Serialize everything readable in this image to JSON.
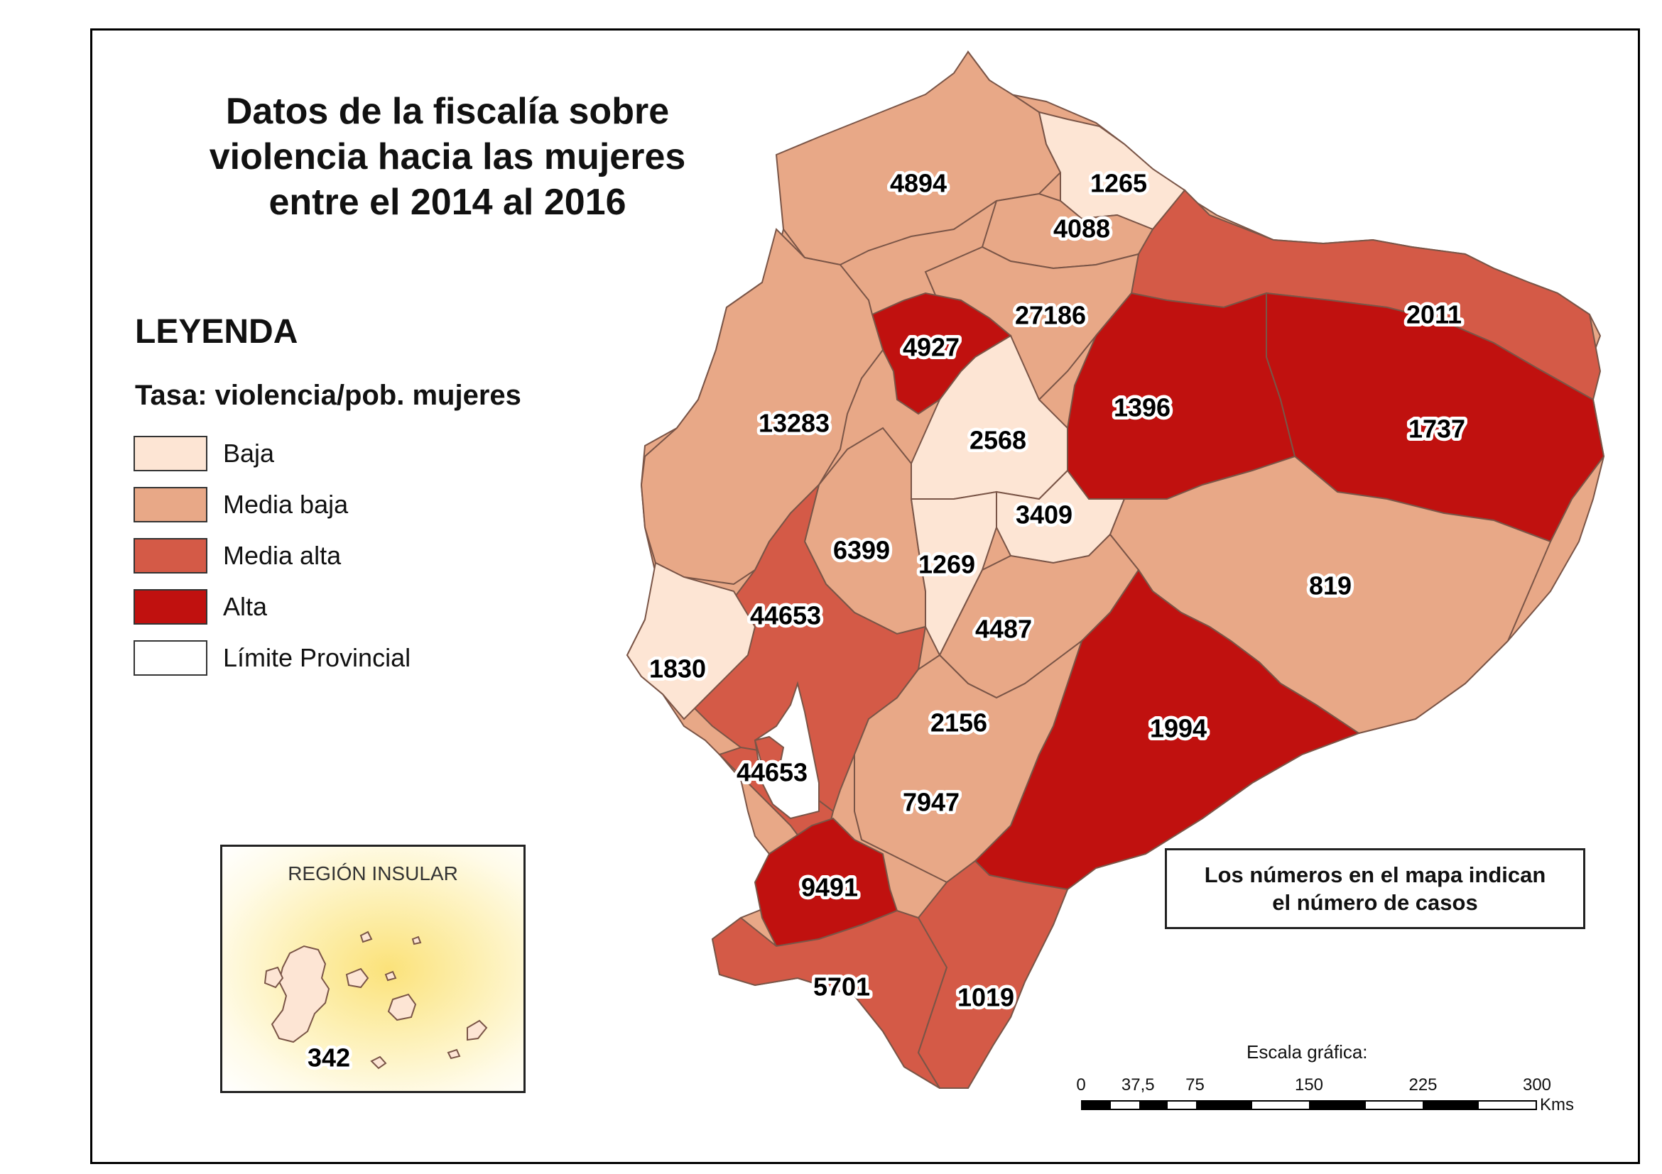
{
  "title_lines": [
    "Datos de la fiscalía sobre",
    "violencia hacia las mujeres",
    "entre el 2014 al 2016"
  ],
  "legend": {
    "heading": "LEYENDA",
    "subtitle": "Tasa: violencia/pob. mujeres",
    "items": [
      {
        "label": "Baja",
        "color": "#fde5d4"
      },
      {
        "label": "Media baja",
        "color": "#e8a887"
      },
      {
        "label": "Media alta",
        "color": "#d45a47"
      },
      {
        "label": "Alta",
        "color": "#c0110f"
      },
      {
        "label": "Límite Provincial",
        "color": "#ffffff"
      }
    ]
  },
  "provinces": [
    {
      "value": "4894",
      "class": "Media baja"
    },
    {
      "value": "1265",
      "class": "Baja"
    },
    {
      "value": "4088",
      "class": "Media baja"
    },
    {
      "value": "2011",
      "class": "Media alta"
    },
    {
      "value": "27186",
      "class": "Media baja"
    },
    {
      "value": "4927",
      "class": "Alta"
    },
    {
      "value": "1396",
      "class": "Alta"
    },
    {
      "value": "1737",
      "class": "Alta"
    },
    {
      "value": "13283",
      "class": "Media baja"
    },
    {
      "value": "2568",
      "class": "Baja"
    },
    {
      "value": "3409",
      "class": "Baja"
    },
    {
      "value": "6399",
      "class": "Media baja"
    },
    {
      "value": "1269",
      "class": "Baja"
    },
    {
      "value": "819",
      "class": "Media baja"
    },
    {
      "value": "44653",
      "class": "Media alta"
    },
    {
      "value": "4487",
      "class": "Media baja"
    },
    {
      "value": "1830",
      "class": "Baja"
    },
    {
      "value": "2156",
      "class": "Media baja"
    },
    {
      "value": "1994",
      "class": "Alta"
    },
    {
      "value": "44653",
      "class": "Media alta"
    },
    {
      "value": "7947",
      "class": "Media baja"
    },
    {
      "value": "9491",
      "class": "Alta"
    },
    {
      "value": "5701",
      "class": "Media alta"
    },
    {
      "value": "1019",
      "class": "Media alta"
    }
  ],
  "inset": {
    "title": "REGIÓN INSULAR",
    "value": "342",
    "class": "Baja"
  },
  "note_lines": [
    "Los números en el mapa indican",
    "el número de casos"
  ],
  "scale": {
    "title": "Escala gráfica:",
    "ticks": [
      "0",
      "37,5",
      "75",
      "150",
      "225",
      "300"
    ],
    "tick_values": [
      0,
      37.5,
      75,
      150,
      225,
      300
    ],
    "unit": "Kms"
  }
}
